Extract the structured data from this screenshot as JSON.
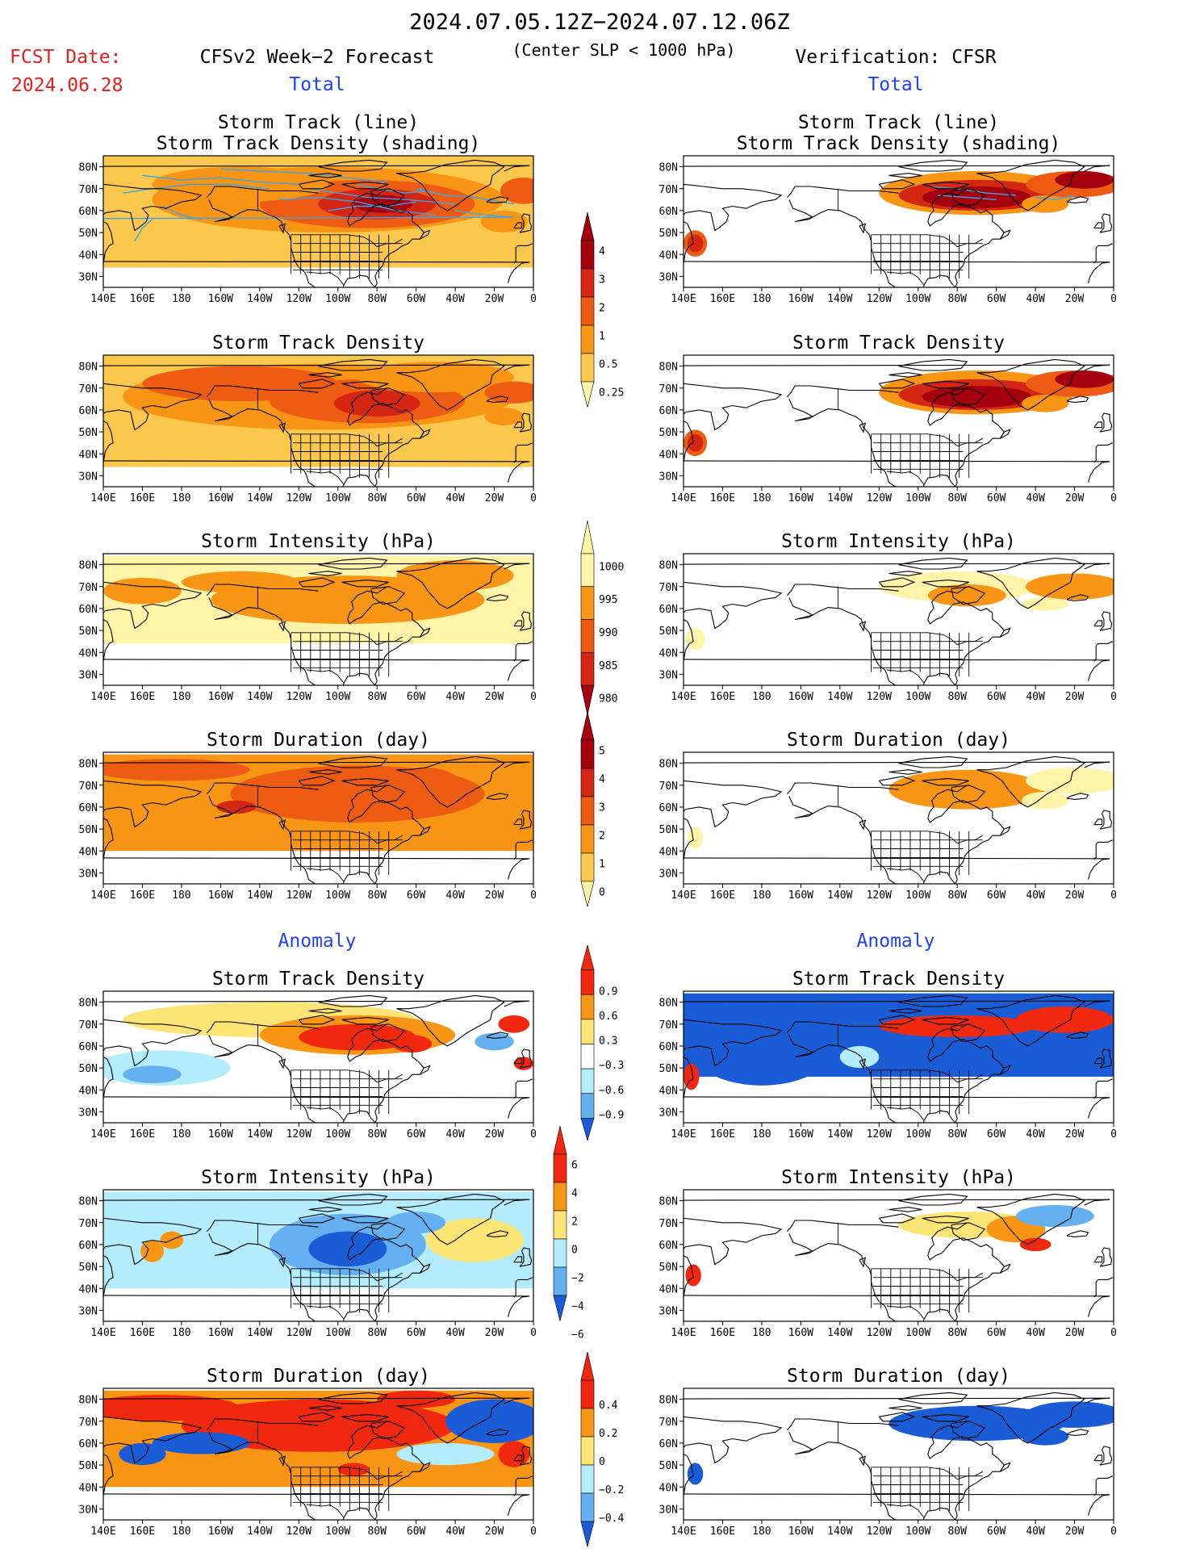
{
  "header": {
    "period": "2024.07.05.12Z−2024.07.12.06Z",
    "fcst_date_label": "FCST Date:",
    "fcst_date_value": "2024.06.28",
    "left_title": "CFSv2 Week−2 Forecast",
    "center_subtitle": "(Center SLP < 1000 hPa)",
    "right_title": "Verification: CFSR"
  },
  "colors": {
    "red_text": "#e8201e",
    "blue_text": "#2040ff",
    "track_line": "#3fa4e6",
    "land": "#ffffff"
  },
  "section_labels": {
    "total": "Total",
    "anomaly": "Anomaly"
  },
  "axes": {
    "lon_ticks": [
      "140E",
      "160E",
      "180",
      "160W",
      "140W",
      "120W",
      "100W",
      "80W",
      "60W",
      "40W",
      "20W",
      "0"
    ],
    "lat_ticks": [
      "80N",
      "70N",
      "60N",
      "50N",
      "40N",
      "30N"
    ]
  },
  "panel_titles": {
    "track_line": "Storm Track (line)",
    "track_shading": "Storm Track Density (shading)",
    "density": "Storm Track Density",
    "intensity": "Storm Intensity (hPa)",
    "duration": "Storm Duration (day)"
  },
  "colorbars": {
    "density": {
      "labels": [
        "4",
        "3",
        "2",
        "1",
        "0.5",
        "0.25"
      ],
      "colors": [
        "#a4000e",
        "#d42613",
        "#ee5c13",
        "#f99515",
        "#fbc84d",
        "#fff4a8"
      ]
    },
    "intensity": {
      "labels": [
        "1000",
        "995",
        "990",
        "985",
        "980"
      ],
      "colors": [
        "#fff4a8",
        "#f99515",
        "#ee5c13",
        "#d42613",
        "#a4000e"
      ]
    },
    "duration": {
      "labels": [
        "5",
        "4",
        "3",
        "2",
        "1",
        "0"
      ],
      "colors": [
        "#a4000e",
        "#d42613",
        "#ee5c13",
        "#f99515",
        "#fbc84d",
        "#fff4a8"
      ]
    },
    "anom_density": {
      "labels": [
        "0.9",
        "0.6",
        "0.3",
        "−0.3",
        "−0.6",
        "−0.9"
      ],
      "colors": [
        "#f02810",
        "#f99515",
        "#fde575",
        "#ffffff",
        "#b2ecfd",
        "#65b0f0",
        "#1a5cd6"
      ]
    },
    "anom_intensity": {
      "labels": [
        "6",
        "4",
        "2",
        "0",
        "−2",
        "−4",
        "−6"
      ],
      "colors": [
        "#f02810",
        "#f99515",
        "#fde575",
        "#b2ecfd",
        "#65b0f0",
        "#1a5cd6"
      ]
    },
    "anom_duration": {
      "labels": [
        "0.4",
        "0.2",
        "0",
        "−0.2",
        "−0.4"
      ],
      "colors": [
        "#f02810",
        "#f99515",
        "#fde575",
        "#b2ecfd",
        "#65b0f0",
        "#1a5cd6"
      ]
    }
  },
  "panels": [
    {
      "key": "fcst-track",
      "title1": "Storm Track (line)",
      "title2": "Storm Track Density (shading)",
      "field": "total_density",
      "source": "forecast",
      "tracks": true
    },
    {
      "key": "cfsr-track",
      "title1": "Storm Track (line)",
      "title2": "Storm Track Density (shading)",
      "field": "total_density",
      "source": "verification",
      "tracks": true
    },
    {
      "key": "fcst-density",
      "title1": "Storm Track Density",
      "field": "total_density",
      "source": "forecast"
    },
    {
      "key": "cfsr-density",
      "title1": "Storm Track Density",
      "field": "total_density",
      "source": "verification"
    },
    {
      "key": "fcst-intensity",
      "title1": "Storm Intensity (hPa)",
      "field": "total_intensity",
      "source": "forecast"
    },
    {
      "key": "cfsr-intensity",
      "title1": "Storm Intensity (hPa)",
      "field": "total_intensity",
      "source": "verification"
    },
    {
      "key": "fcst-duration",
      "title1": "Storm Duration (day)",
      "field": "total_duration",
      "source": "forecast"
    },
    {
      "key": "cfsr-duration",
      "title1": "Storm Duration (day)",
      "field": "total_duration",
      "source": "verification"
    },
    {
      "key": "fcst-anom-density",
      "title1": "Storm Track Density",
      "field": "anomaly_density",
      "source": "forecast"
    },
    {
      "key": "cfsr-anom-density",
      "title1": "Storm Track Density",
      "field": "anomaly_density",
      "source": "verification"
    },
    {
      "key": "fcst-anom-intensity",
      "title1": "Storm Intensity (hPa)",
      "field": "anomaly_intensity",
      "source": "forecast"
    },
    {
      "key": "cfsr-anom-intensity",
      "title1": "Storm Intensity (hPa)",
      "field": "anomaly_intensity",
      "source": "verification"
    },
    {
      "key": "fcst-anom-duration",
      "title1": "Storm Duration (day)",
      "field": "anomaly_duration",
      "source": "forecast"
    },
    {
      "key": "cfsr-anom-duration",
      "title1": "Storm Duration (day)",
      "field": "anomaly_duration",
      "source": "verification"
    }
  ]
}
